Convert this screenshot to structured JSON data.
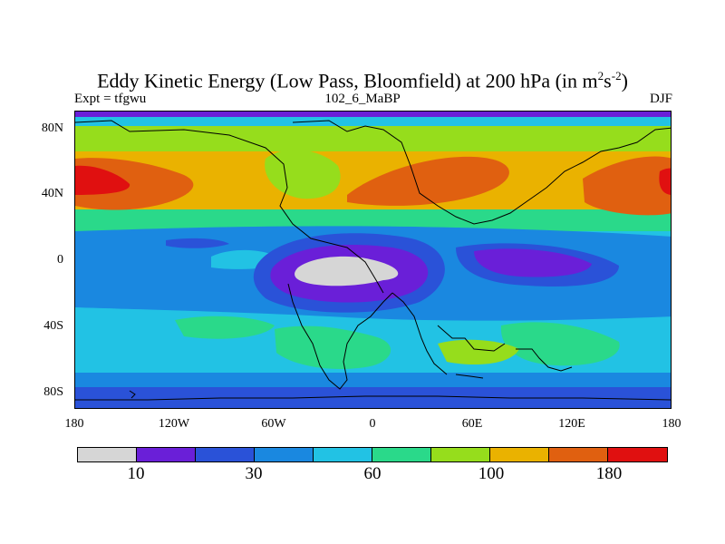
{
  "title": {
    "text": "Eddy Kinetic Energy (Low Pass, Bloomfield) at 200 hPa (in m",
    "sup1": "2",
    "mid": "s",
    "sup2": "-2",
    "end": ")"
  },
  "left_label": "Expt = tfgwu",
  "center_label": "102_6_MaBP",
  "right_label": "DJF",
  "axes": {
    "y_ticks": [
      "80N",
      "40N",
      "0",
      "40S",
      "80S"
    ],
    "x_ticks": [
      "180",
      "120W",
      "60W",
      "0",
      "60E",
      "120E",
      "180"
    ]
  },
  "colorbar": {
    "colors": [
      "#d6d6d6",
      "#6a1fd8",
      "#2a52d8",
      "#1a88e0",
      "#22c2e4",
      "#2ad98a",
      "#96dd1c",
      "#eab200",
      "#e06010",
      "#e01010"
    ],
    "labels": [
      "10",
      "30",
      "60",
      "100",
      "180"
    ]
  }
}
